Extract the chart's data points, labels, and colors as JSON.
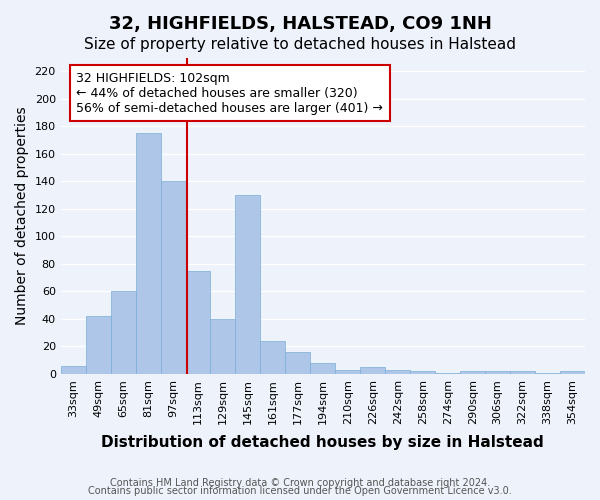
{
  "title": "32, HIGHFIELDS, HALSTEAD, CO9 1NH",
  "subtitle": "Size of property relative to detached houses in Halstead",
  "xlabel": "Distribution of detached houses by size in Halstead",
  "ylabel": "Number of detached properties",
  "categories": [
    "33sqm",
    "49sqm",
    "65sqm",
    "81sqm",
    "97sqm",
    "113sqm",
    "129sqm",
    "145sqm",
    "161sqm",
    "177sqm",
    "194sqm",
    "210sqm",
    "226sqm",
    "242sqm",
    "258sqm",
    "274sqm",
    "290sqm",
    "306sqm",
    "322sqm",
    "338sqm",
    "354sqm"
  ],
  "values": [
    6,
    42,
    60,
    175,
    140,
    75,
    40,
    130,
    24,
    16,
    8,
    3,
    5,
    3,
    2,
    1,
    2,
    2,
    2,
    1,
    2
  ],
  "bar_color": "#aec6e8",
  "bar_edge_color": "#7aaed6",
  "red_line_color": "#cc0000",
  "annotation_box_text": "32 HIGHFIELDS: 102sqm\n← 44% of detached houses are smaller (320)\n56% of semi-detached houses are larger (401) →",
  "annotation_box_color": "#cc0000",
  "ylim": [
    0,
    230
  ],
  "yticks": [
    0,
    20,
    40,
    60,
    80,
    100,
    120,
    140,
    160,
    180,
    200,
    220
  ],
  "footnote1": "Contains HM Land Registry data © Crown copyright and database right 2024.",
  "footnote2": "Contains public sector information licensed under the Open Government Licence v3.0.",
  "background_color": "#eef2fb",
  "grid_color": "#ffffff",
  "title_fontsize": 13,
  "subtitle_fontsize": 11,
  "xlabel_fontsize": 11,
  "ylabel_fontsize": 10,
  "tick_fontsize": 8,
  "annotation_fontsize": 9,
  "red_line_index": 4.55
}
